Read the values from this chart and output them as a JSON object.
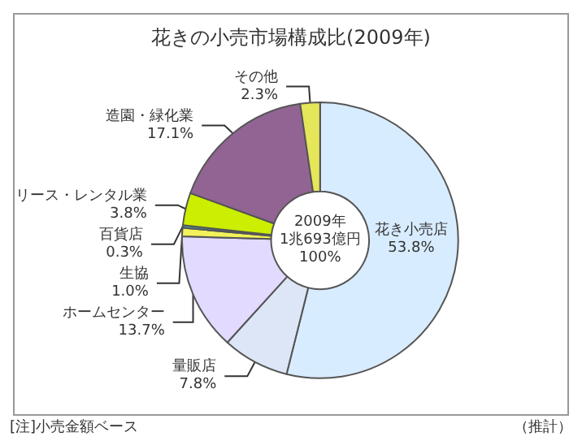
{
  "chart_data": {
    "type": "donut",
    "title": "花きの小売市場構成比(2009年)",
    "categories": [
      "花き小売店",
      "量販店",
      "ホームセンター",
      "生協",
      "百貨店",
      "リース・レンタル業",
      "造園・緑化業",
      "その他"
    ],
    "values": [
      53.8,
      7.8,
      13.7,
      1.0,
      0.3,
      3.8,
      17.1,
      2.3
    ],
    "value_labels": [
      "53.8%",
      "7.8%",
      "13.7%",
      "1.0%",
      "0.3%",
      "3.8%",
      "17.1%",
      "2.3%"
    ],
    "colors": [
      "#d8ecff",
      "#dde6f6",
      "#e2daff",
      "#f2f25a",
      "#3fa8a0",
      "#ccee00",
      "#926494",
      "#e6e65a"
    ],
    "annotations": [
      "2009年\n1兆693億円\n100%",
      "[注]小売金額ベース",
      "（推計）"
    ],
    "legend": false
  }
}
